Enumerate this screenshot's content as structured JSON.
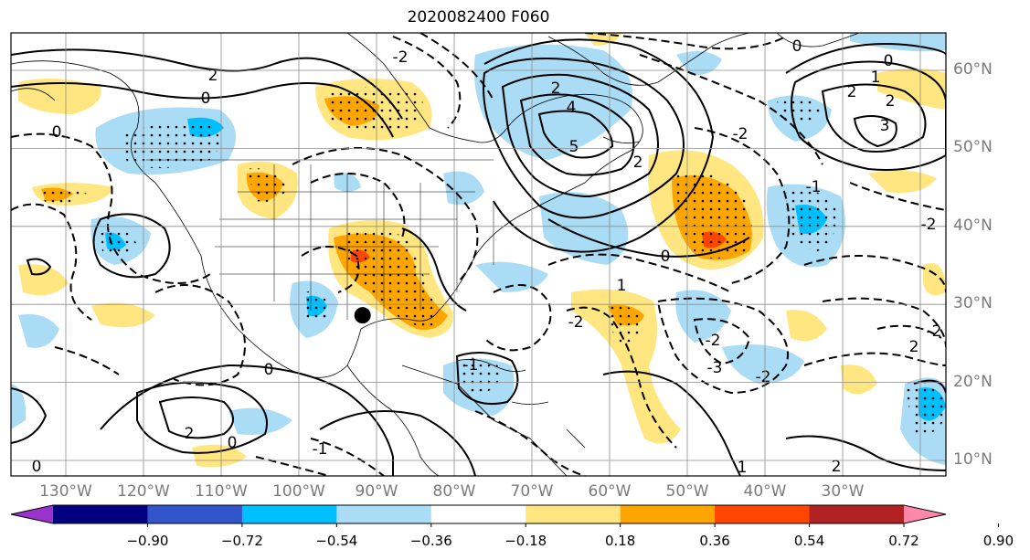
{
  "title": "2020082400 F060",
  "lon_labels": [
    "130°W",
    "120°W",
    "110°W",
    "100°W",
    "90°W",
    "80°W",
    "70°W",
    "60°W",
    "50°W",
    "40°W",
    "30°W"
  ],
  "lat_labels": [
    "60°N",
    "50°N",
    "40°N",
    "30°N",
    "20°N",
    "10°N"
  ],
  "colorbar": {
    "tick_labels": [
      "−0.90",
      "−0.72",
      "−0.54",
      "−0.36",
      "−0.18",
      "0.18",
      "0.36",
      "0.54",
      "0.72",
      "0.90"
    ],
    "colors": [
      "#9933cc",
      "#000080",
      "#3355cc",
      "#00bfff",
      "#aadcf5",
      "#ffffff",
      "#ffe680",
      "#ffa500",
      "#ff4500",
      "#b22222",
      "#ff88aa"
    ]
  },
  "contour_labels": [
    "2",
    "0",
    "-2",
    "0",
    "2",
    "4",
    "5",
    "2",
    "0",
    "-2",
    "3",
    "2",
    "1",
    "0",
    "-2",
    "0",
    "2",
    "-1",
    "-2",
    "1",
    "-2",
    "-3",
    "-2",
    "0",
    "1",
    "2",
    "0",
    "-1",
    "0",
    "2",
    "-1",
    "-2",
    "2"
  ],
  "marker": {
    "lon": -91.8,
    "lat": 28.6
  }
}
